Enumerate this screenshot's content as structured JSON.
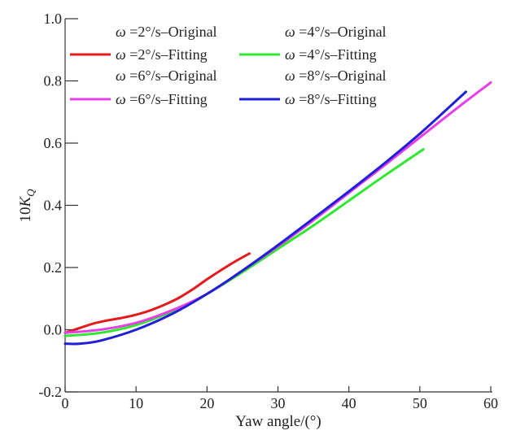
{
  "chart_data": {
    "type": "line",
    "title": "",
    "xlabel": "Yaw angle/(°)",
    "ylabel": {
      "prefix": "10",
      "symbol": "K",
      "subscript": "Q"
    },
    "xlim": [
      0,
      60
    ],
    "ylim": [
      -0.2,
      1.0
    ],
    "xticks": [
      0,
      10,
      20,
      30,
      40,
      50,
      60
    ],
    "xtick_labels": [
      "0",
      "10",
      "20",
      "30",
      "40",
      "50",
      "60"
    ],
    "yticks": [
      -0.2,
      0.0,
      0.2,
      0.4,
      0.6,
      0.8,
      1.0
    ],
    "ytick_labels": [
      "-0.2",
      "0.0",
      "0.2",
      "0.4",
      "0.6",
      "0.8",
      "1.0"
    ],
    "grid": false,
    "legend_position": "top-left",
    "legend": [
      {
        "text": "=2°/s–Original",
        "color": "",
        "style": "none"
      },
      {
        "text": "=4°/s–Original",
        "color": "",
        "style": "none"
      },
      {
        "text": "=2°/s–Fitting",
        "color": "#e41a1c",
        "style": "line"
      },
      {
        "text": "=4°/s–Fitting",
        "color": "#2ee82e",
        "style": "line"
      },
      {
        "text": "=6°/s–Original",
        "color": "",
        "style": "none"
      },
      {
        "text": "=8°/s–Original",
        "color": "",
        "style": "none"
      },
      {
        "text": "=6°/s–Fitting",
        "color": "#e83ee8",
        "style": "line"
      },
      {
        "text": "=8°/s–Fitting",
        "color": "#1f1fd6",
        "style": "line"
      }
    ],
    "legend_symbol": "ω",
    "series": [
      {
        "name": "ω=2°/s–Fitting",
        "color": "#e41a1c",
        "x": [
          0,
          2,
          4,
          6,
          8,
          10,
          12,
          14,
          16,
          18,
          20,
          22,
          24,
          26
        ],
        "y": [
          -0.01,
          0.005,
          0.02,
          0.03,
          0.038,
          0.048,
          0.062,
          0.08,
          0.102,
          0.13,
          0.162,
          0.192,
          0.22,
          0.245
        ]
      },
      {
        "name": "ω=4°/s–Fitting",
        "color": "#2ee82e",
        "x": [
          0,
          5,
          10,
          15,
          20,
          25,
          30,
          35,
          40,
          45,
          50.5
        ],
        "y": [
          -0.02,
          -0.01,
          0.015,
          0.058,
          0.115,
          0.185,
          0.26,
          0.335,
          0.415,
          0.495,
          0.58
        ]
      },
      {
        "name": "ω=6°/s–Fitting",
        "color": "#e83ee8",
        "x": [
          0,
          5,
          10,
          15,
          20,
          25,
          30,
          35,
          40,
          45,
          50,
          55,
          60
        ],
        "y": [
          -0.01,
          0.0,
          0.022,
          0.062,
          0.115,
          0.19,
          0.268,
          0.352,
          0.44,
          0.528,
          0.618,
          0.708,
          0.795
        ]
      },
      {
        "name": "ω=8°/s–Fitting",
        "color": "#1f1fd6",
        "x": [
          0,
          2,
          5,
          10,
          15,
          20,
          25,
          30,
          35,
          40,
          45,
          50,
          56.5
        ],
        "y": [
          -0.045,
          -0.045,
          -0.035,
          0.0,
          0.05,
          0.115,
          0.19,
          0.272,
          0.358,
          0.445,
          0.535,
          0.63,
          0.765
        ]
      }
    ]
  }
}
